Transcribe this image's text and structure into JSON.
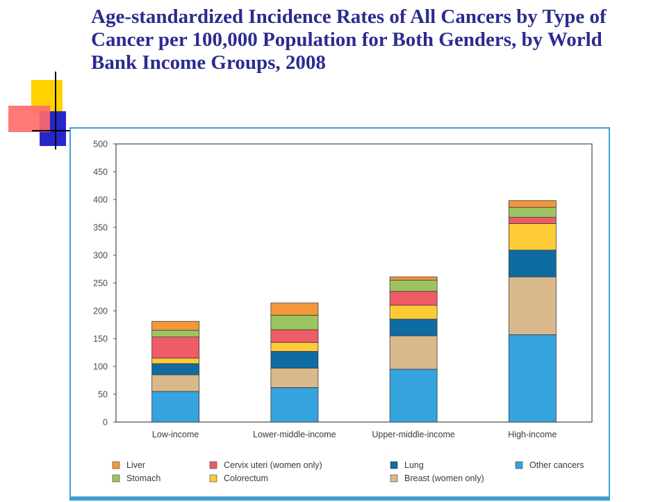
{
  "slide": {
    "title": "Age-standardized Incidence Rates of All Cancers by Type of Cancer per 100,000 Population for Both Genders, by World Bank Income Groups, 2008"
  },
  "colors": {
    "title": "#2b2b8f",
    "panel_border": "#3d9ed4"
  },
  "chart_data": {
    "type": "bar",
    "stacked": true,
    "title": "",
    "xlabel": "",
    "ylabel": "",
    "ylim": [
      0,
      500
    ],
    "yticks": [
      0,
      50,
      100,
      150,
      200,
      250,
      300,
      350,
      400,
      450,
      500
    ],
    "grid": false,
    "legend_position": "bottom",
    "categories": [
      "Low-income",
      "Lower-middle-income",
      "Upper-middle-income",
      "High-income"
    ],
    "series": [
      {
        "name": "Other cancers",
        "color": "#35a3de",
        "values": [
          55,
          62,
          95,
          157
        ]
      },
      {
        "name": "Breast (women only)",
        "color": "#d9b98c",
        "values": [
          30,
          35,
          60,
          104
        ]
      },
      {
        "name": "Lung",
        "color": "#0f6ca3",
        "values": [
          20,
          30,
          30,
          48
        ]
      },
      {
        "name": "Colorectum",
        "color": "#fccb36",
        "values": [
          10,
          16,
          25,
          48
        ]
      },
      {
        "name": "Cervix uteri (women only)",
        "color": "#ef5b66",
        "values": [
          38,
          23,
          25,
          11
        ]
      },
      {
        "name": "Stomach",
        "color": "#9cc562",
        "values": [
          12,
          26,
          20,
          18
        ]
      },
      {
        "name": "Liver",
        "color": "#f4973a",
        "values": [
          16,
          22,
          6,
          12
        ]
      }
    ],
    "legend_order": [
      "Liver",
      "Cervix uteri (women only)",
      "Lung",
      "Other cancers",
      "Stomach",
      "Colorectum",
      "Breast (women only)"
    ]
  }
}
